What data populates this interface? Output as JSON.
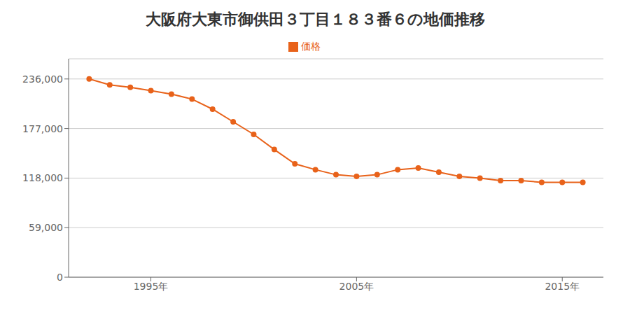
{
  "chart_data": {
    "type": "line",
    "title": "大阪府大東市御供田３丁目１８３番６の地価推移",
    "x": [
      1992,
      1993,
      1994,
      1995,
      1996,
      1997,
      1998,
      1999,
      2000,
      2001,
      2002,
      2003,
      2004,
      2005,
      2006,
      2007,
      2008,
      2009,
      2010,
      2011,
      2012,
      2013,
      2014,
      2015,
      2016
    ],
    "series": [
      {
        "name": "価格",
        "color": "#E8621A",
        "marker": "circle",
        "values": [
          236000,
          229000,
          226000,
          222000,
          218000,
          212000,
          200000,
          185000,
          170000,
          152000,
          135000,
          128000,
          122000,
          120000,
          122000,
          128000,
          130000,
          125000,
          120000,
          118000,
          115000,
          115000,
          113000,
          113000,
          113000
        ]
      }
    ],
    "xlim": [
      1991,
      2017
    ],
    "xticks": [
      {
        "value": 1995,
        "label": "1995年"
      },
      {
        "value": 2005,
        "label": "2005年"
      },
      {
        "value": 2015,
        "label": "2015年"
      }
    ],
    "ylim": [
      0,
      260000
    ],
    "yticks": [
      0,
      {
        "value": 59000,
        "label": "59,000"
      },
      {
        "value": 118000,
        "label": "118,000"
      },
      {
        "value": 177000,
        "label": "177,000"
      },
      {
        "value": 236000,
        "label": "236,000"
      }
    ],
    "grid": true,
    "legend": "top"
  }
}
